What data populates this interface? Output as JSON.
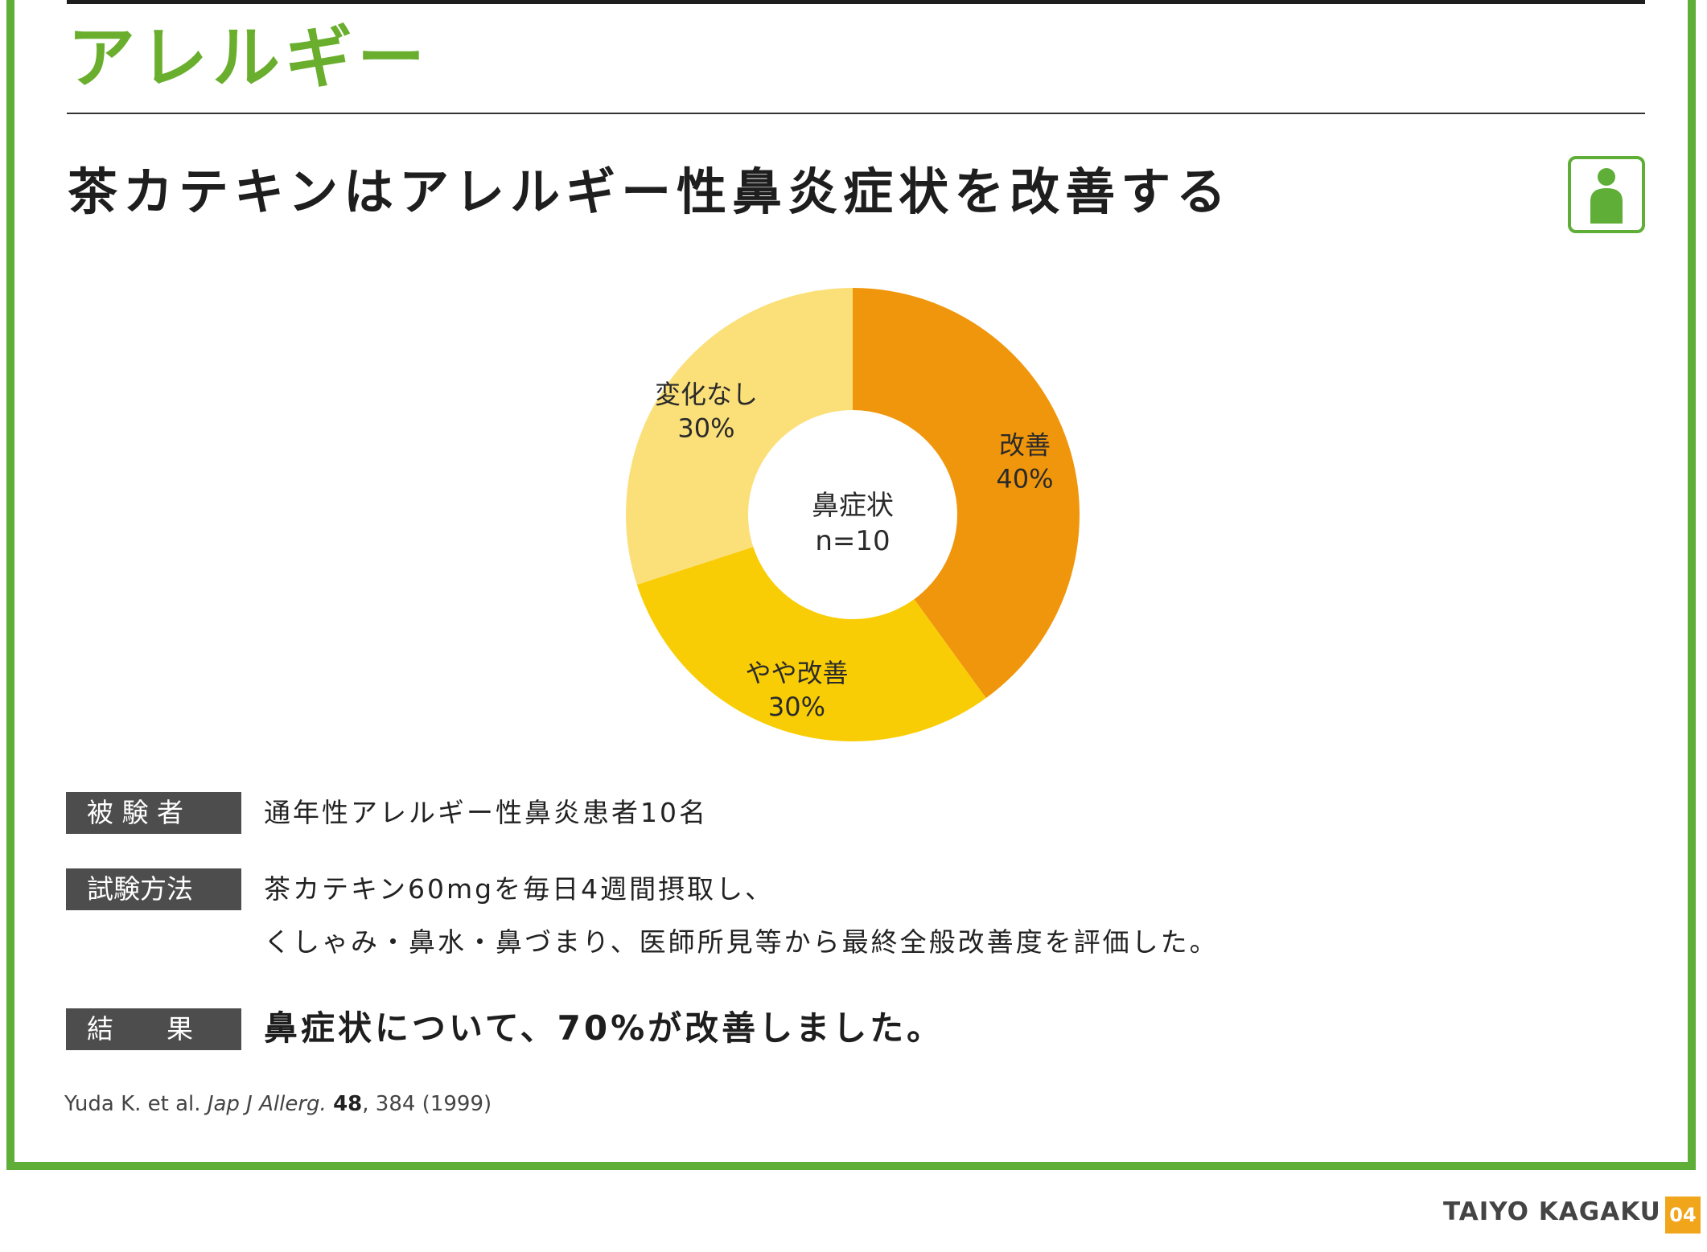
{
  "header": {
    "section_title": "アレルギー",
    "headline": "茶カテキンはアレルギー性鼻炎症状を改善する",
    "badge_icon": "person-icon"
  },
  "chart_data": {
    "type": "pie",
    "subtype": "donut",
    "center_label": [
      "鼻症状",
      "n=10"
    ],
    "start": "top, clockwise",
    "slices": [
      {
        "label": "改善",
        "value": 40,
        "value_label": "40%",
        "color": "#f0960c"
      },
      {
        "label": "やや改善",
        "value": 30,
        "value_label": "30%",
        "color": "#f9cd05"
      },
      {
        "label": "変化なし",
        "value": 30,
        "value_label": "30%",
        "color": "#fbe07a"
      }
    ]
  },
  "details": {
    "subjects": {
      "tag": "被 験 者",
      "text": "通年性アレルギー性鼻炎患者10名"
    },
    "method": {
      "tag": "試験方法",
      "line1": "茶カテキン60mgを毎日4週間摂取し、",
      "line2": "くしゃみ・鼻水・鼻づまり、医師所見等から最終全般改善度を評価した。"
    },
    "result": {
      "tag": "結　　果",
      "text": "鼻症状について、70%が改善しました。"
    }
  },
  "citation": {
    "authors": "Yuda K. et al.",
    "journal": "Jap J Allerg.",
    "volume": "48",
    "rest": ", 384 (1999)"
  },
  "footer": {
    "brand": "TAIYO KAGAKU",
    "page": "04"
  },
  "colors": {
    "accent_green": "#6aae2e",
    "frame_green": "#5fae38",
    "tag_gray": "#4d4d4d",
    "page_badge": "#f0a51a"
  }
}
